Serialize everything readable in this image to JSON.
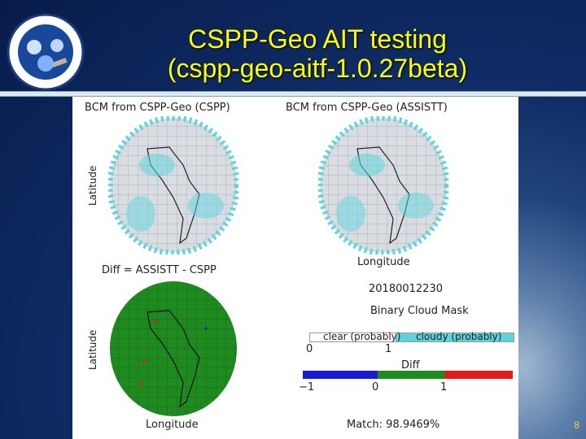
{
  "slide": {
    "title_line1": "CSPP-Geo AIT testing",
    "title_line2": "(cspp-geo-aitf-1.0.27beta)",
    "page_number": "8",
    "logo_text": "NOAA NESDIS STAR"
  },
  "figure": {
    "panel_tl_title": "BCM from CSPP-Geo (CSPP)",
    "panel_tr_title": "BCM from CSPP-Geo (ASSISTT)",
    "panel_bl_title": "Diff = ASSISTT - CSPP",
    "ylabel": "Latitude",
    "xlabel": "Longitude",
    "timestamp": "20180012230",
    "mask_title": "Binary Cloud Mask",
    "mask_legend": {
      "clear_label": "clear (probably)",
      "cloudy_label": "cloudy (probably)",
      "tick_0": "0",
      "tick_1": "1",
      "clear_color": "#ffffff",
      "cloudy_color": "#5fd3dd"
    },
    "diff_legend": {
      "title": "Diff",
      "tick_m1": "−1",
      "tick_0": "0",
      "tick_1": "1",
      "neg_color": "#1a1ad0",
      "zero_color": "#1f8a1f",
      "pos_color": "#e01c1c"
    },
    "match_text": "Match: 98.9469%"
  }
}
